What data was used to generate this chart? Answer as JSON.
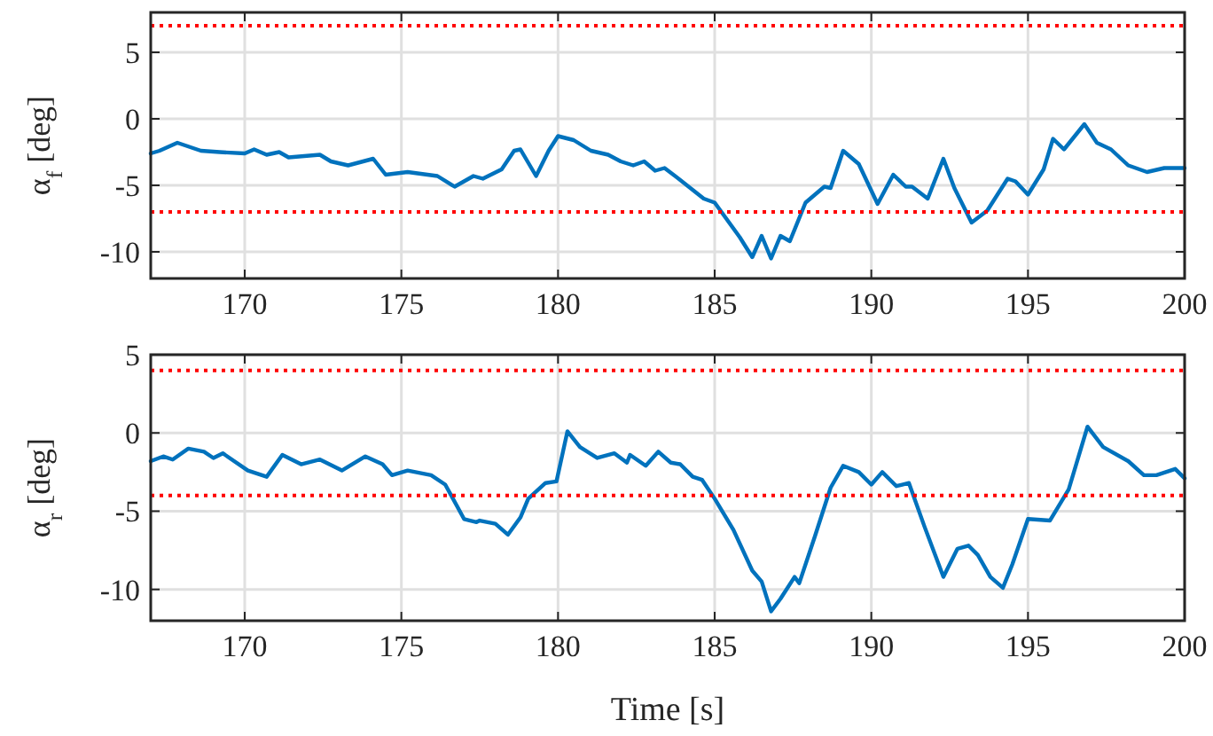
{
  "chart_data": [
    {
      "type": "line",
      "ylabel": "α$_{f}$ [deg]",
      "xlim": [
        167,
        200
      ],
      "xticks": [
        170,
        175,
        180,
        185,
        190,
        195,
        200
      ],
      "ylim": [
        -12,
        8
      ],
      "yticks": [
        -10,
        -5,
        0,
        5
      ],
      "grid": true,
      "line_style": "solid",
      "ref_lines": [
        {
          "axis": "y",
          "value": 7,
          "color": "#ff0000",
          "line_style": "dotted"
        },
        {
          "axis": "y",
          "value": -7,
          "color": "#ff0000",
          "line_style": "dotted"
        }
      ],
      "series": [
        {
          "color": "#0072bd",
          "x": [
            167,
            167.28,
            167.85,
            168.6,
            169.2,
            170,
            170.3,
            170.7,
            171.1,
            171.4,
            172.4,
            172.75,
            173.3,
            174.1,
            174.5,
            175.2,
            176.15,
            176.7,
            177.3,
            177.6,
            178.2,
            178.6,
            178.8,
            179.3,
            179.7,
            180,
            180.5,
            181.05,
            181.6,
            182,
            182.4,
            182.75,
            183.1,
            183.4,
            183.9,
            184.65,
            185,
            185.8,
            186.2,
            186.5,
            186.8,
            187.1,
            187.4,
            187.9,
            188.5,
            188.7,
            189.1,
            189.6,
            190.2,
            190.7,
            191.1,
            191.3,
            191.8,
            192.3,
            192.65,
            193.2,
            193.7,
            194.35,
            194.6,
            195,
            195.5,
            195.8,
            196.15,
            196.8,
            197.2,
            197.65,
            198.2,
            198.8,
            199.35,
            200
          ],
          "values": [
            -2.6,
            -2.4,
            -1.8,
            -2.4,
            -2.5,
            -2.6,
            -2.3,
            -2.7,
            -2.5,
            -2.9,
            -2.7,
            -3.2,
            -3.5,
            -3,
            -4.2,
            -4,
            -4.3,
            -5.1,
            -4.3,
            -4.5,
            -3.8,
            -2.4,
            -2.3,
            -4.3,
            -2.4,
            -1.3,
            -1.6,
            -2.4,
            -2.7,
            -3.2,
            -3.5,
            -3.2,
            -3.9,
            -3.7,
            -4.6,
            -6,
            -6.3,
            -8.9,
            -10.4,
            -8.8,
            -10.5,
            -8.8,
            -9.2,
            -6.3,
            -5.1,
            -5.2,
            -2.4,
            -3.4,
            -6.4,
            -4.2,
            -5.1,
            -5.1,
            -6,
            -3,
            -5.2,
            -7.8,
            -6.9,
            -4.5,
            -4.7,
            -5.7,
            -3.8,
            -1.5,
            -2.3,
            -0.4,
            -1.8,
            -2.3,
            -3.5,
            -4,
            -3.7,
            -3.7
          ]
        }
      ]
    },
    {
      "type": "line",
      "xlabel": "Time [s]",
      "ylabel": "α$_{r}$ [deg]",
      "xlim": [
        167,
        200
      ],
      "xticks": [
        170,
        175,
        180,
        185,
        190,
        195,
        200
      ],
      "ylim": [
        -12,
        5
      ],
      "yticks": [
        -10,
        -5,
        0,
        5
      ],
      "grid": true,
      "line_style": "solid",
      "ref_lines": [
        {
          "axis": "y",
          "value": 4,
          "color": "#ff0000",
          "line_style": "dotted"
        },
        {
          "axis": "y",
          "value": -4,
          "color": "#ff0000",
          "line_style": "dotted"
        }
      ],
      "series": [
        {
          "color": "#0072bd",
          "x": [
            167,
            167.4,
            167.7,
            168.2,
            168.7,
            169,
            169.3,
            170.1,
            170.7,
            171.2,
            171.8,
            172.4,
            173.1,
            173.85,
            174.4,
            174.7,
            175.2,
            175.95,
            176.4,
            177,
            177.4,
            177.5,
            178,
            178.4,
            178.8,
            179.05,
            179.6,
            179.95,
            180.3,
            180.7,
            181.25,
            181.8,
            182.2,
            182.3,
            182.8,
            183.2,
            183.6,
            183.9,
            184.3,
            184.6,
            185,
            185.6,
            186.2,
            186.5,
            186.8,
            187.1,
            187.55,
            187.7,
            188.2,
            188.7,
            189.1,
            189.6,
            190,
            190.35,
            190.8,
            191.2,
            191.7,
            192.3,
            192.75,
            193.1,
            193.4,
            193.8,
            194.2,
            194.5,
            195,
            195.7,
            196.3,
            196.9,
            197.4,
            198.2,
            198.7,
            199.1,
            199.7,
            200
          ],
          "values": [
            -1.8,
            -1.5,
            -1.7,
            -1,
            -1.2,
            -1.6,
            -1.3,
            -2.4,
            -2.8,
            -1.4,
            -2,
            -1.7,
            -2.4,
            -1.5,
            -2,
            -2.7,
            -2.4,
            -2.7,
            -3.3,
            -5.5,
            -5.7,
            -5.6,
            -5.8,
            -6.5,
            -5.4,
            -4.2,
            -3.2,
            -3.1,
            0.1,
            -0.9,
            -1.6,
            -1.3,
            -1.9,
            -1.4,
            -2.1,
            -1.2,
            -1.9,
            -2,
            -2.8,
            -3,
            -4.2,
            -6.2,
            -8.8,
            -9.5,
            -11.4,
            -10.6,
            -9.2,
            -9.6,
            -6.6,
            -3.5,
            -2.1,
            -2.5,
            -3.3,
            -2.5,
            -3.4,
            -3.2,
            -6,
            -9.2,
            -7.4,
            -7.2,
            -7.8,
            -9.2,
            -9.9,
            -8.4,
            -5.5,
            -5.6,
            -3.6,
            0.4,
            -0.9,
            -1.8,
            -2.7,
            -2.7,
            -2.3,
            -2.9
          ]
        }
      ]
    }
  ]
}
